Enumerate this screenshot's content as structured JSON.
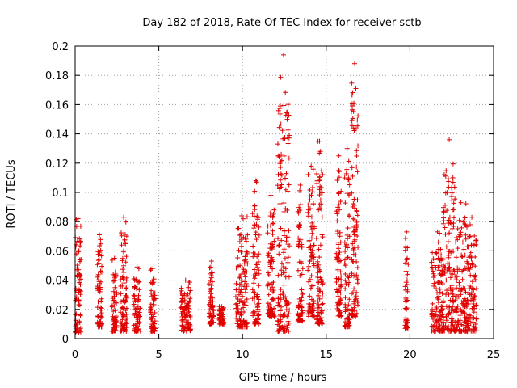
{
  "chart_data": {
    "type": "scatter",
    "title": "Day 182 of 2018, Rate Of TEC Index for receiver sctb",
    "xlabel": "GPS time / hours",
    "ylabel": "ROTI / TECUs",
    "xlim": [
      0,
      25
    ],
    "ylim": [
      0,
      0.2
    ],
    "x_ticks": [
      "0",
      "5",
      "10",
      "15",
      "20",
      "25"
    ],
    "y_ticks": [
      "0",
      "0.02",
      "0.04",
      "0.06",
      "0.08",
      "0.1",
      "0.12",
      "0.14",
      "0.16",
      "0.18",
      "0.2"
    ],
    "grid": true,
    "marker": "plus",
    "color": "#e00000",
    "clusters": [
      {
        "x": [
          0.0,
          0.35
        ],
        "y": [
          0.004,
          0.082
        ]
      },
      {
        "x": [
          1.3,
          1.6
        ],
        "y": [
          0.008,
          0.071
        ]
      },
      {
        "x": [
          2.2,
          2.5
        ],
        "y": [
          0.005,
          0.055
        ]
      },
      {
        "x": [
          2.7,
          3.1
        ],
        "y": [
          0.005,
          0.083
        ]
      },
      {
        "x": [
          3.5,
          3.9
        ],
        "y": [
          0.005,
          0.049
        ]
      },
      {
        "x": [
          4.5,
          4.8
        ],
        "y": [
          0.005,
          0.048
        ]
      },
      {
        "x": [
          6.3,
          6.9
        ],
        "y": [
          0.005,
          0.04
        ]
      },
      {
        "x": [
          8.0,
          8.3
        ],
        "y": [
          0.01,
          0.053
        ]
      },
      {
        "x": [
          8.6,
          8.9
        ],
        "y": [
          0.01,
          0.022
        ]
      },
      {
        "x": [
          9.6,
          10.3
        ],
        "y": [
          0.008,
          0.084
        ]
      },
      {
        "x": [
          10.6,
          11.0
        ],
        "y": [
          0.01,
          0.108
        ]
      },
      {
        "x": [
          11.5,
          11.9
        ],
        "y": [
          0.015,
          0.098
        ]
      },
      {
        "x": [
          12.1,
          12.8
        ],
        "y": [
          0.005,
          0.194
        ]
      },
      {
        "x": [
          13.3,
          13.6
        ],
        "y": [
          0.012,
          0.105
        ]
      },
      {
        "x": [
          13.9,
          14.3
        ],
        "y": [
          0.015,
          0.118
        ]
      },
      {
        "x": [
          14.4,
          14.8
        ],
        "y": [
          0.01,
          0.135
        ]
      },
      {
        "x": [
          15.6,
          15.9
        ],
        "y": [
          0.015,
          0.125
        ]
      },
      {
        "x": [
          16.1,
          16.4
        ],
        "y": [
          0.008,
          0.13
        ]
      },
      {
        "x": [
          16.5,
          16.9
        ],
        "y": [
          0.015,
          0.188
        ]
      },
      {
        "x": [
          19.7,
          19.9
        ],
        "y": [
          0.007,
          0.073
        ]
      },
      {
        "x": [
          21.3,
          22.0
        ],
        "y": [
          0.005,
          0.073
        ]
      },
      {
        "x": [
          22.0,
          22.7
        ],
        "y": [
          0.005,
          0.136
        ]
      },
      {
        "x": [
          22.7,
          23.4
        ],
        "y": [
          0.005,
          0.093
        ]
      },
      {
        "x": [
          23.4,
          24.0
        ],
        "y": [
          0.005,
          0.083
        ]
      }
    ]
  }
}
